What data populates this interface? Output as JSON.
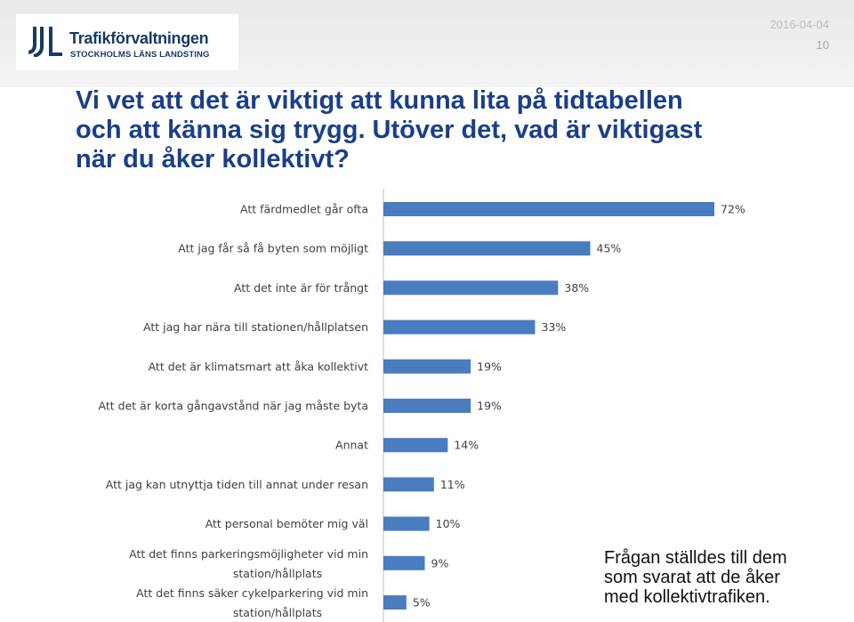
{
  "header": {
    "logo_name": "Trafikförvaltningen",
    "logo_subtitle": "STOCKHOLMS LÄNS LANDSTING",
    "date": "2016-04-04",
    "page_number": "10"
  },
  "title_lines": [
    "Vi vet att det är viktigt att kunna lita på tidtabellen",
    "och att känna sig trygg. Utöver det, vad är viktigast",
    "när du åker kollektivt?"
  ],
  "note_lines": [
    "Frågan ställdes till dem",
    "som svarat att de åker",
    "med kollektivtrafiken."
  ],
  "colors": {
    "title": "#1a3f8a",
    "bar": "#4a7cc0",
    "logo": "#173a66",
    "axis": "#bfbfbf"
  },
  "chart_data": {
    "type": "bar",
    "orientation": "horizontal",
    "categories": [
      "Att färdmedlet går ofta",
      "Att jag får så få byten som möjligt",
      "Att det inte är för trångt",
      "Att jag har nära till stationen/hållplatsen",
      "Att det är klimatsmart att åka kollektivt",
      "Att det är korta gångavstånd när jag måste byta",
      "Annat",
      "Att jag kan utnyttja tiden till annat under resan",
      "Att personal bemöter mig väl",
      "Att det finns parkeringsmöjligheter vid min station/hållplats",
      "Att det finns säker cykelparkering vid min station/hållplats"
    ],
    "values": [
      72,
      45,
      38,
      33,
      19,
      19,
      14,
      11,
      10,
      9,
      5
    ],
    "value_labels": [
      "72%",
      "45%",
      "38%",
      "33%",
      "19%",
      "19%",
      "14%",
      "11%",
      "10%",
      "9%",
      "5%"
    ],
    "unit": "%",
    "xlim": [
      0,
      100
    ],
    "grid": false,
    "legend": "none"
  }
}
